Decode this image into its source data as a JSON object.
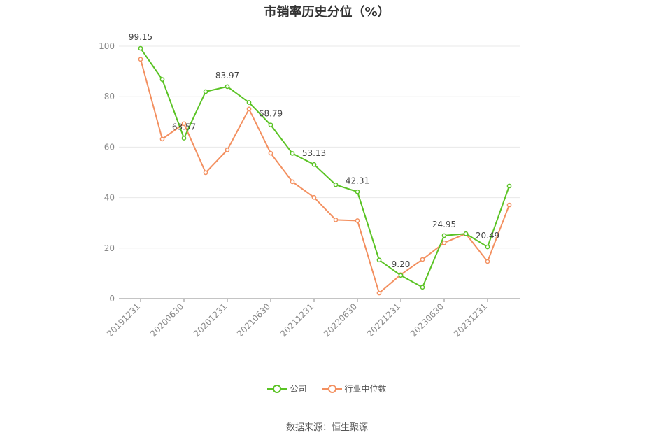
{
  "chart_data": {
    "type": "line",
    "title": "市销率历史分位（%）",
    "x": [
      "20191231",
      "20200331",
      "20200630",
      "20200930",
      "20201231",
      "20210331",
      "20210630",
      "20210930",
      "20211231",
      "20220331",
      "20220630",
      "20220930",
      "20221231",
      "20230331",
      "20230630",
      "20230930",
      "20231231",
      "20240331"
    ],
    "x_tick_labels": [
      "20191231",
      "20200630",
      "20201231",
      "20210630",
      "20211231",
      "20220630",
      "20221231",
      "20230630",
      "20231231"
    ],
    "ylim": [
      0,
      100
    ],
    "y_ticks": [
      0,
      20,
      40,
      60,
      80,
      100
    ],
    "grid": true,
    "legend_position": "bottom",
    "series": [
      {
        "name": "公司",
        "color": "#5ac324",
        "values": [
          99.15,
          86.8,
          63.57,
          82.0,
          83.97,
          77.7,
          68.79,
          57.5,
          53.13,
          45.1,
          42.31,
          15.3,
          9.2,
          4.5,
          24.95,
          25.7,
          20.49,
          44.6
        ]
      },
      {
        "name": "行业中位数",
        "color": "#f39060",
        "values": [
          94.8,
          63.2,
          69.3,
          49.9,
          58.9,
          75.1,
          57.6,
          46.3,
          40.1,
          31.2,
          30.9,
          2.2,
          9.5,
          15.5,
          22.1,
          25.7,
          14.7,
          37.1
        ]
      }
    ],
    "data_labels": [
      {
        "index": 0,
        "text": "99.15"
      },
      {
        "index": 2,
        "text": "63.57"
      },
      {
        "index": 4,
        "text": "83.97"
      },
      {
        "index": 6,
        "text": "68.79"
      },
      {
        "index": 8,
        "text": "53.13"
      },
      {
        "index": 10,
        "text": "42.31"
      },
      {
        "index": 12,
        "text": "9.20"
      },
      {
        "index": 14,
        "text": "24.95"
      },
      {
        "index": 16,
        "text": "20.49"
      }
    ]
  },
  "source": "数据来源：恒生聚源"
}
